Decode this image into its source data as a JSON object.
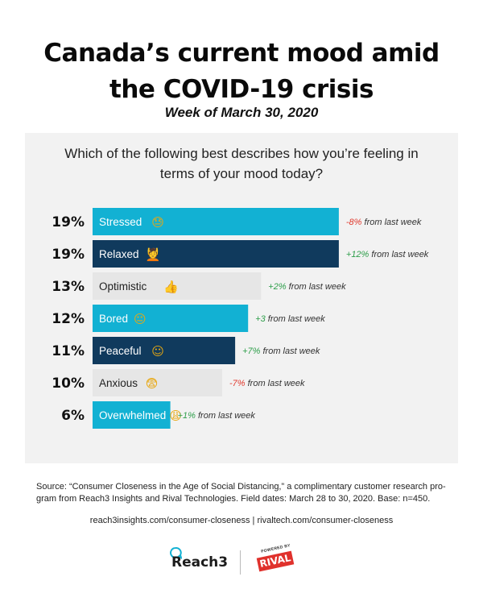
{
  "header": {
    "title_line1": "Canada’s current mood amid",
    "title_line2": "the COVID-19 crisis",
    "subtitle": "Week of March 30, 2020"
  },
  "question": {
    "line1": "Which of the following best describes how you’re feeling in",
    "line2": "terms of your mood today?"
  },
  "chart_data": {
    "type": "bar",
    "orientation": "horizontal",
    "title": "Which of the following best describes how you’re feeling in terms of your mood today?",
    "value_unit": "%",
    "categories": [
      "Stressed",
      "Relaxed",
      "Optimistic",
      "Bored",
      "Peaceful",
      "Anxious",
      "Overwhelmed"
    ],
    "values": [
      19,
      19,
      13,
      12,
      11,
      10,
      6
    ],
    "value_labels": [
      "19%",
      "19%",
      "13%",
      "12%",
      "11%",
      "10%",
      "6%"
    ],
    "change_values": [
      "-8%",
      "+12%",
      "+2%",
      "+3",
      "+7%",
      "-7%",
      "+1%"
    ],
    "change_suffix": " from last week",
    "change_colors": [
      "#e03a2e",
      "#2e9e4a",
      "#2e9e4a",
      "#2e9e4a",
      "#2e9e4a",
      "#e03a2e",
      "#2e9e4a"
    ],
    "bar_colors": [
      "#12b1d3",
      "#103a5d",
      "#e6e6e6",
      "#12b1d3",
      "#103a5d",
      "#e6e6e6",
      "#12b1d3"
    ],
    "label_colors": [
      "#ffffff",
      "#ffffff",
      "#222222",
      "#ffffff",
      "#ffffff",
      "#222222",
      "#ffffff"
    ],
    "emoji": [
      "😓",
      "💆",
      "👍",
      "😐",
      "☺",
      "😨",
      "😩"
    ]
  },
  "footer": {
    "source_line1": "Source: “Consumer Closeness in the Age of Social Distancing,” a complimentary customer research pro-",
    "source_line2": "gram from Reach3 Insights and Rival Technologies. Field dates: March 28 to 30, 2020. Base: n=450.",
    "links": "reach3insights.com/consumer-closeness | rivaltech.com/consumer-closeness",
    "reach3_logo": "Reach3",
    "powered_by": "POWERED BY",
    "rival_logo": "RIVAL"
  }
}
